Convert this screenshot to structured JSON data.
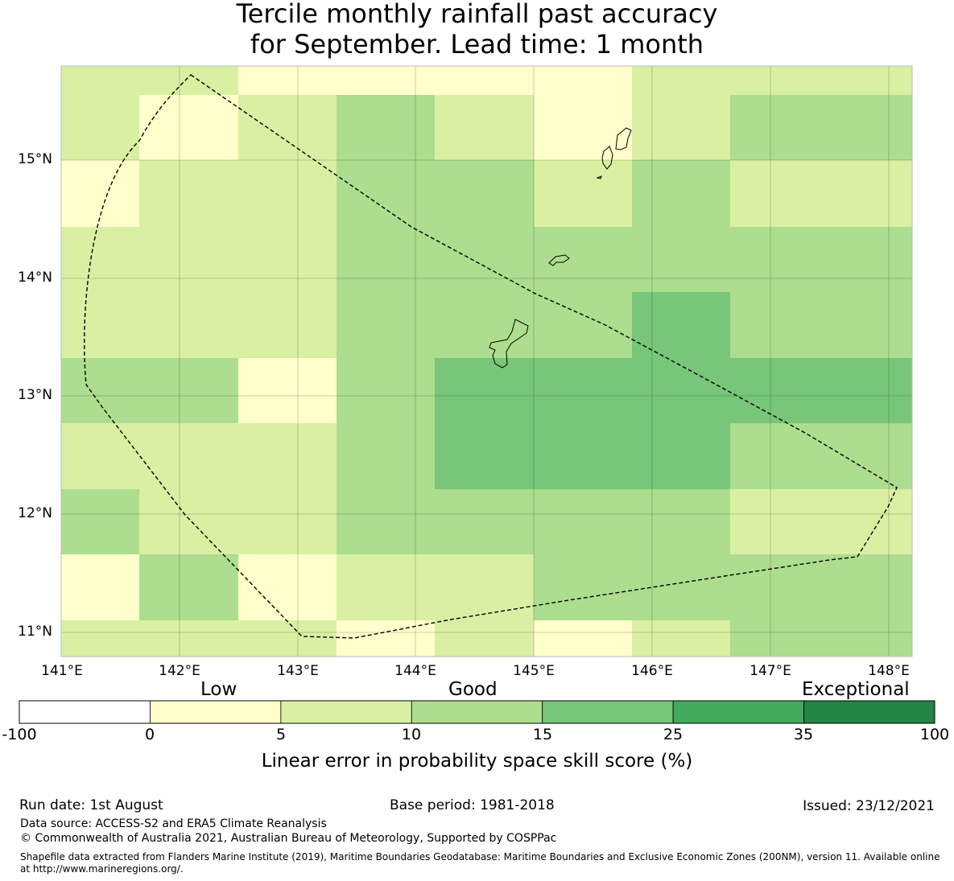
{
  "title": {
    "line1": "Tercile monthly rainfall past accuracy",
    "line2": "for September. Lead time: 1 month"
  },
  "map": {
    "lat_labels": [
      "15°N",
      "14°N",
      "13°N",
      "12°N",
      "11°N"
    ],
    "lon_labels": [
      "141°E",
      "142°E",
      "143°E",
      "144°E",
      "145°E",
      "146°E",
      "147°E",
      "148°E"
    ],
    "grid_values": [
      [
        5,
        5,
        0,
        0,
        0,
        0,
        5,
        5
      ],
      [
        5,
        0,
        5,
        10,
        5,
        0,
        5,
        10
      ],
      [
        0,
        5,
        5,
        10,
        10,
        5,
        10,
        5
      ],
      [
        5,
        5,
        5,
        10,
        10,
        10,
        10,
        10
      ],
      [
        5,
        5,
        5,
        10,
        10,
        10,
        15,
        10
      ],
      [
        10,
        10,
        0,
        10,
        15,
        15,
        15,
        15
      ],
      [
        5,
        5,
        5,
        10,
        15,
        15,
        15,
        10
      ],
      [
        10,
        5,
        5,
        10,
        10,
        10,
        10,
        5
      ],
      [
        0,
        10,
        0,
        5,
        5,
        10,
        10,
        10
      ],
      [
        5,
        5,
        5,
        0,
        5,
        0,
        5,
        10
      ]
    ]
  },
  "colorbar": {
    "categories": [
      "Low",
      "Good",
      "Exceptional"
    ],
    "ticks": [
      "-100",
      "0",
      "5",
      "10",
      "15",
      "25",
      "35",
      "100"
    ],
    "colors": [
      "#ffffff",
      "#ffffcc",
      "#d9f0a3",
      "#addd8e",
      "#78c679",
      "#41ab5d",
      "#238443"
    ],
    "label": "Linear error in probability space skill score (%)"
  },
  "footer": {
    "run_date": "Run date: 1st August",
    "base_period": "Base period: 1981-2018",
    "issued": "Issued: 23/12/2021",
    "data_source": "Data source: ACCESS-S2 and ERA5 Climate Reanalysis",
    "copyright": "© Commonwealth of Australia 2021, Australian Bureau of Meteorology, Supported by COSPPac",
    "shapefile_note": "Shapefile data extracted from Flanders Marine Institute (2019), Maritime Boundaries Geodatabase: Maritime Boundaries and Exclusive Economic Zones (200NM), version 11. Available online at http://www.marineregions.org/."
  }
}
